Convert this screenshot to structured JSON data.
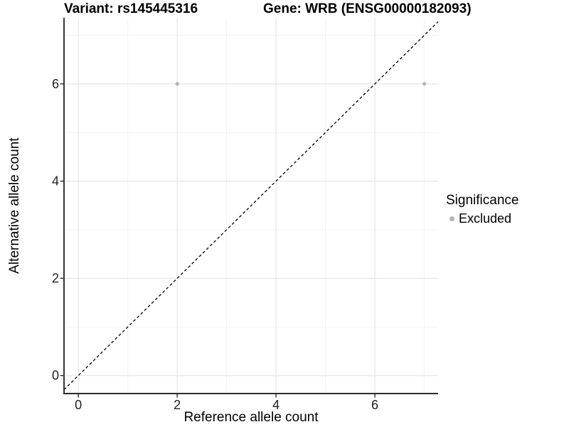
{
  "chart_data": {
    "type": "scatter",
    "titles": [
      "Variant: rs145445316",
      "Gene: WRB (ENSG00000182093)"
    ],
    "xlabel": "Reference allele count",
    "ylabel": "Alternative allele count",
    "x_ticks": [
      0,
      2,
      4,
      6
    ],
    "y_ticks": [
      0,
      2,
      4,
      6
    ],
    "x_minor_gridlines": [
      1,
      3,
      5,
      7
    ],
    "y_minor_gridlines": [
      1,
      3,
      5,
      7
    ],
    "xlim": [
      -0.29,
      7.28
    ],
    "ylim": [
      -0.37,
      7.36
    ],
    "grid": true,
    "points": [
      {
        "x": 2,
        "y": 6,
        "significance": "Excluded"
      },
      {
        "x": 7,
        "y": 6,
        "significance": "Excluded"
      }
    ],
    "identity_line": {
      "slope": 1,
      "intercept": 0,
      "style": "dashed",
      "color": "#000000"
    },
    "legend": {
      "position": "right",
      "title": "Significance",
      "entries": [
        {
          "label": "Excluded",
          "color": "#b5b5b5",
          "marker": "circle"
        }
      ]
    },
    "style": {
      "background": "#ffffff",
      "point_color": "#b5b5b5",
      "major_grid_color": "#e6e6e6",
      "minor_grid_color": "#f2f2f2",
      "axis_color": "#2b2b2b",
      "tick_label_color": "#1f1f1f"
    }
  }
}
